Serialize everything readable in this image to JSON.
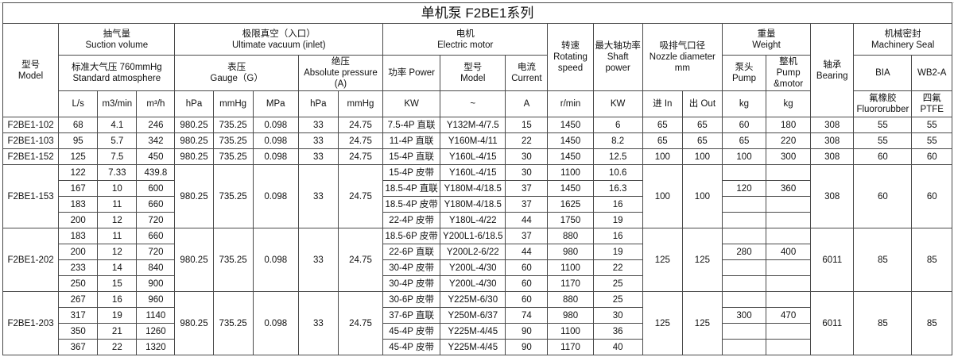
{
  "title": "单机泵 F2BE1系列",
  "headers": {
    "model": "型号\nModel",
    "suction": "抽气量\nSuction volume",
    "standard": "标准大气压 760mmHg\nStandard atmosphere",
    "vacuum": "极限真空（入口）\nUltimate vacuum (inlet)",
    "gauge": "表压\nGauge（G）",
    "absolute": "绝压\nAbsolute pressure\n(A)",
    "motor": "电机\nElectric motor",
    "power": "功率 Power",
    "motor_model": "型号\nModel",
    "current": "电流\nCurrent",
    "speed": "转速\nRotating\nspeed",
    "shaft": "最大轴功率\nShaft\npower",
    "nozzle": "吸排气口径\nNozzle diameter\nmm",
    "weight": "重量\nWeight",
    "pump": "泵头\nPump",
    "pump_motor": "整机\nPump\n&motor",
    "bearing": "轴承\nBearing",
    "seal": "机械密封\nMachinery Seal",
    "bia": "BIA",
    "wb2a": "WB2-A",
    "units": [
      "L/s",
      "m3/min",
      "m³/h",
      "hPa",
      "mmHg",
      "MPa",
      "hPa",
      "mmHg",
      "KW",
      "~",
      "A",
      "r/min",
      "KW",
      "进 In",
      "出 Out",
      "kg",
      "kg",
      "氟橡胶\nFluororubber",
      "四氟\nPTFE"
    ]
  },
  "single_rows": [
    {
      "model": "F2BE1-102",
      "ls": "68",
      "m3min": "4.1",
      "m3h": "246",
      "hpa": "980.25",
      "mmhg": "735.25",
      "mpa": "0.098",
      "abs_hpa": "33",
      "abs_mmhg": "24.75",
      "power": "7.5-4P 直联",
      "motor": "Y132M-4/7.5",
      "current": "15",
      "speed": "1450",
      "shaft": "6",
      "in": "65",
      "out": "65",
      "pump": "60",
      "pump_motor": "180",
      "bearing": "308",
      "bia": "55",
      "wb2a": "55"
    },
    {
      "model": "F2BE1-103",
      "ls": "95",
      "m3min": "5.7",
      "m3h": "342",
      "hpa": "980.25",
      "mmhg": "735.25",
      "mpa": "0.098",
      "abs_hpa": "33",
      "abs_mmhg": "24.75",
      "power": "11-4P 直联",
      "motor": "Y160M-4/11",
      "current": "22",
      "speed": "1450",
      "shaft": "8.2",
      "in": "65",
      "out": "65",
      "pump": "65",
      "pump_motor": "220",
      "bearing": "308",
      "bia": "55",
      "wb2a": "55"
    },
    {
      "model": "F2BE1-152",
      "ls": "125",
      "m3min": "7.5",
      "m3h": "450",
      "hpa": "980.25",
      "mmhg": "735.25",
      "mpa": "0.098",
      "abs_hpa": "33",
      "abs_mmhg": "24.75",
      "power": "15-4P 直联",
      "motor": "Y160L-4/15",
      "current": "30",
      "speed": "1450",
      "shaft": "12.5",
      "in": "100",
      "out": "100",
      "pump": "100",
      "pump_motor": "300",
      "bearing": "308",
      "bia": "60",
      "wb2a": "60"
    }
  ],
  "groups": [
    {
      "model": "F2BE1-153",
      "hpa": "980.25",
      "mmhg": "735.25",
      "mpa": "0.098",
      "abs_hpa": "33",
      "abs_mmhg": "24.75",
      "in": "100",
      "out": "100",
      "bearing": "308",
      "bia": "60",
      "wb2a": "60",
      "rows": [
        {
          "ls": "122",
          "m3min": "7.33",
          "m3h": "439.8",
          "power": "15-4P 皮带",
          "motor": "Y160L-4/15",
          "current": "30",
          "speed": "1100",
          "shaft": "10.6",
          "pump": "",
          "pump_motor": ""
        },
        {
          "ls": "167",
          "m3min": "10",
          "m3h": "600",
          "power": "18.5-4P 直联",
          "motor": "Y180M-4/18.5",
          "current": "37",
          "speed": "1450",
          "shaft": "16.3",
          "pump": "120",
          "pump_motor": "360"
        },
        {
          "ls": "183",
          "m3min": "11",
          "m3h": "660",
          "power": "18.5-4P 皮带",
          "motor": "Y180M-4/18.5",
          "current": "37",
          "speed": "1625",
          "shaft": "16",
          "pump": "",
          "pump_motor": ""
        },
        {
          "ls": "200",
          "m3min": "12",
          "m3h": "720",
          "power": "22-4P 皮带",
          "motor": "Y180L-4/22",
          "current": "44",
          "speed": "1750",
          "shaft": "19",
          "pump": "",
          "pump_motor": ""
        }
      ]
    },
    {
      "model": "F2BE1-202",
      "hpa": "980.25",
      "mmhg": "735.25",
      "mpa": "0.098",
      "abs_hpa": "33",
      "abs_mmhg": "24.75",
      "in": "125",
      "out": "125",
      "bearing": "6011",
      "bia": "85",
      "wb2a": "85",
      "rows": [
        {
          "ls": "183",
          "m3min": "11",
          "m3h": "660",
          "power": "18.5-6P 皮带",
          "motor": "Y200L1-6/18.5",
          "current": "37",
          "speed": "880",
          "shaft": "16",
          "pump": "",
          "pump_motor": ""
        },
        {
          "ls": "200",
          "m3min": "12",
          "m3h": "720",
          "power": "22-6P 直联",
          "motor": "Y200L2-6/22",
          "current": "44",
          "speed": "980",
          "shaft": "19",
          "pump": "280",
          "pump_motor": "400"
        },
        {
          "ls": "233",
          "m3min": "14",
          "m3h": "840",
          "power": "30-4P 皮带",
          "motor": "Y200L-4/30",
          "current": "60",
          "speed": "1100",
          "shaft": "22",
          "pump": "",
          "pump_motor": ""
        },
        {
          "ls": "250",
          "m3min": "15",
          "m3h": "900",
          "power": "30-4P 皮带",
          "motor": "Y200L-4/30",
          "current": "60",
          "speed": "1170",
          "shaft": "25",
          "pump": "",
          "pump_motor": ""
        }
      ]
    },
    {
      "model": "F2BE1-203",
      "hpa": "980.25",
      "mmhg": "735.25",
      "mpa": "0.098",
      "abs_hpa": "33",
      "abs_mmhg": "24.75",
      "in": "125",
      "out": "125",
      "bearing": "6011",
      "bia": "85",
      "wb2a": "85",
      "rows": [
        {
          "ls": "267",
          "m3min": "16",
          "m3h": "960",
          "power": "30-6P 皮带",
          "motor": "Y225M-6/30",
          "current": "60",
          "speed": "880",
          "shaft": "25",
          "pump": "",
          "pump_motor": ""
        },
        {
          "ls": "317",
          "m3min": "19",
          "m3h": "1140",
          "power": "37-6P 直联",
          "motor": "Y250M-6/37",
          "current": "74",
          "speed": "980",
          "shaft": "30",
          "pump": "300",
          "pump_motor": "470"
        },
        {
          "ls": "350",
          "m3min": "21",
          "m3h": "1260",
          "power": "45-4P 皮带",
          "motor": "Y225M-4/45",
          "current": "90",
          "speed": "1100",
          "shaft": "36",
          "pump": "",
          "pump_motor": ""
        },
        {
          "ls": "367",
          "m3min": "22",
          "m3h": "1320",
          "power": "45-4P 皮带",
          "motor": "Y225M-4/45",
          "current": "90",
          "speed": "1170",
          "shaft": "40",
          "pump": "",
          "pump_motor": ""
        }
      ]
    }
  ]
}
